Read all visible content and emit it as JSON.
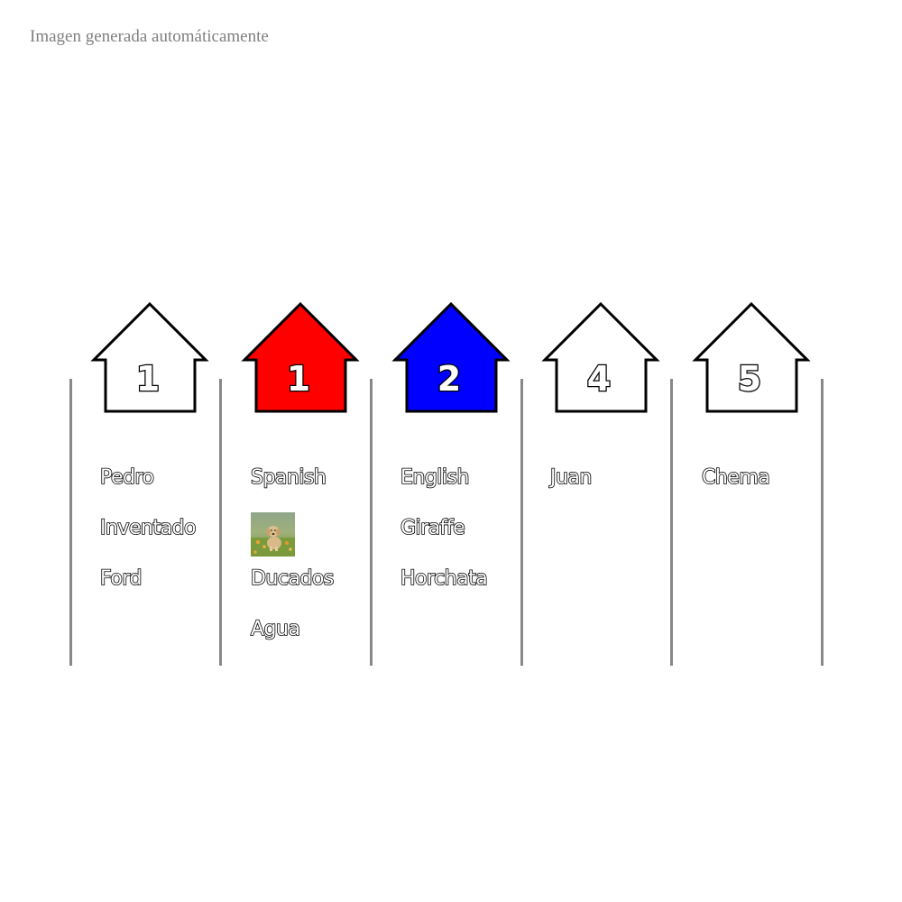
{
  "caption": "Imagen generada automáticamente",
  "colors": {
    "house_default": "#ffffff",
    "house_red": "#ff0000",
    "house_blue": "#0000ff",
    "divider": "#888888"
  },
  "columns": [
    {
      "number": "1",
      "house_color": "#ffffff",
      "items": [
        {
          "type": "text",
          "value": "Pedro"
        },
        {
          "type": "text",
          "value": "Inventado"
        },
        {
          "type": "text",
          "value": "Ford"
        }
      ]
    },
    {
      "number": "1",
      "house_color": "#ff0000",
      "items": [
        {
          "type": "text",
          "value": "Spanish"
        },
        {
          "type": "image",
          "icon": "dog-photo-icon"
        },
        {
          "type": "text",
          "value": "Ducados"
        },
        {
          "type": "text",
          "value": "Agua"
        }
      ]
    },
    {
      "number": "2",
      "house_color": "#0000ff",
      "items": [
        {
          "type": "text",
          "value": "English"
        },
        {
          "type": "text",
          "value": "Giraffe"
        },
        {
          "type": "text",
          "value": "Horchata"
        }
      ]
    },
    {
      "number": "4",
      "house_color": "#ffffff",
      "items": [
        {
          "type": "text",
          "value": "Juan"
        }
      ]
    },
    {
      "number": "5",
      "house_color": "#ffffff",
      "items": [
        {
          "type": "text",
          "value": "Chema"
        }
      ]
    }
  ]
}
